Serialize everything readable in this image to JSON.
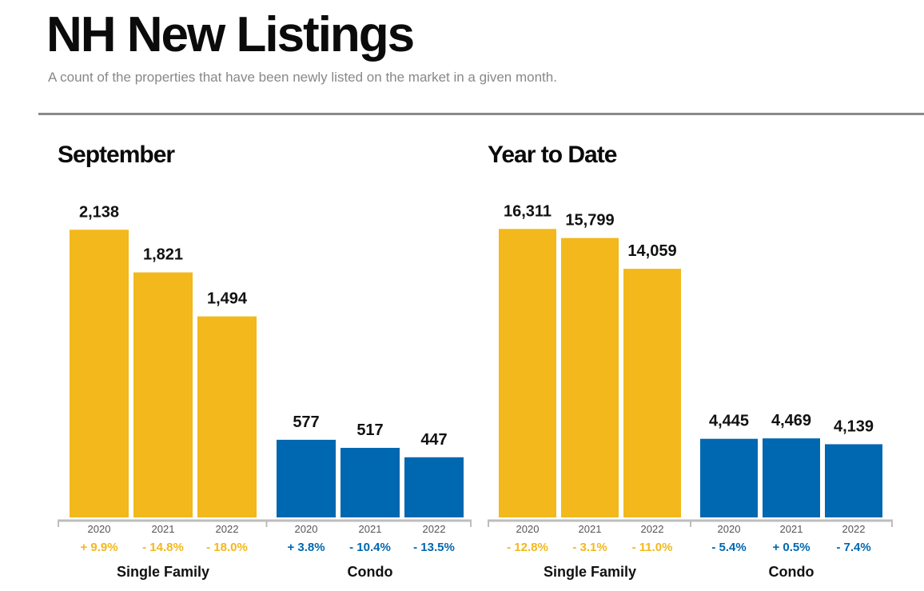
{
  "header": {
    "title": "NH New Listings",
    "subtitle": "A count of the properties that have been newly listed on the market in a given month."
  },
  "colors": {
    "single_family": "#f2b81c",
    "condo": "#0067b1",
    "axis": "#bdbdbd",
    "year_label": "#555555"
  },
  "chart_data": [
    {
      "type": "bar",
      "title": "September",
      "ylim": [
        0,
        2300
      ],
      "groups": [
        {
          "name": "Single Family",
          "color": "#f2b81c",
          "categories": [
            "2020",
            "2021",
            "2022"
          ],
          "values": [
            2138,
            1821,
            1494
          ],
          "value_labels": [
            "2,138",
            "1,821",
            "1,494"
          ],
          "changes": [
            "+ 9.9%",
            "- 14.8%",
            "- 18.0%"
          ]
        },
        {
          "name": "Condo",
          "color": "#0067b1",
          "categories": [
            "2020",
            "2021",
            "2022"
          ],
          "values": [
            577,
            517,
            447
          ],
          "value_labels": [
            "577",
            "517",
            "447"
          ],
          "changes": [
            "+ 3.8%",
            "- 10.4%",
            "- 13.5%"
          ]
        }
      ]
    },
    {
      "type": "bar",
      "title": "Year to Date",
      "ylim": [
        0,
        17500
      ],
      "groups": [
        {
          "name": "Single Family",
          "color": "#f2b81c",
          "categories": [
            "2020",
            "2021",
            "2022"
          ],
          "values": [
            16311,
            15799,
            14059
          ],
          "value_labels": [
            "16,311",
            "15,799",
            "14,059"
          ],
          "changes": [
            "- 12.8%",
            "- 3.1%",
            "- 11.0%"
          ]
        },
        {
          "name": "Condo",
          "color": "#0067b1",
          "categories": [
            "2020",
            "2021",
            "2022"
          ],
          "values": [
            4445,
            4469,
            4139
          ],
          "value_labels": [
            "4,445",
            "4,469",
            "4,139"
          ],
          "changes": [
            "- 5.4%",
            "+ 0.5%",
            "- 7.4%"
          ]
        }
      ]
    }
  ]
}
